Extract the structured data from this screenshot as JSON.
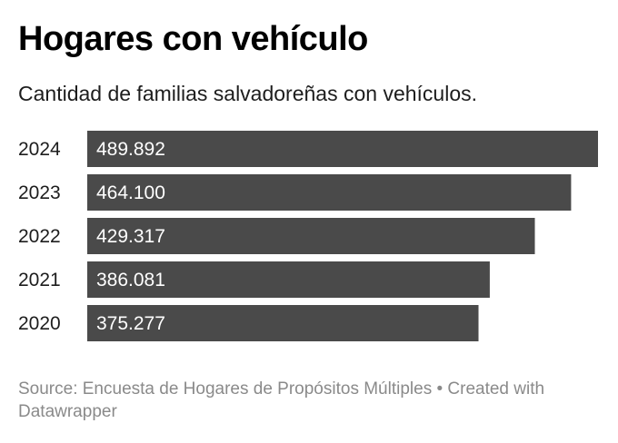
{
  "header": {
    "title": "Hogares con vehículo",
    "subtitle": "Cantidad de familias salvadoreñas con vehículos."
  },
  "footer": {
    "text": "Source: Encuesta de Hogares de Propósitos Múltiples • Created with Datawrapper"
  },
  "colors": {
    "bar": "#4a4a4a",
    "bar_label": "#ffffff",
    "category_label": "#1d1d1d",
    "footer": "#8a8a8a"
  },
  "chart_data": {
    "type": "bar",
    "orientation": "horizontal",
    "title": "Hogares con vehículo",
    "subtitle": "Cantidad de familias salvadoreñas con vehículos.",
    "xlabel": "",
    "ylabel": "",
    "categories": [
      "2024",
      "2023",
      "2022",
      "2021",
      "2020"
    ],
    "values": [
      489892,
      464100,
      429317,
      386081,
      375277
    ],
    "value_labels": [
      "489.892",
      "464.100",
      "429.317",
      "386.081",
      "375.277"
    ],
    "xlim": [
      0,
      489892
    ],
    "grid": false,
    "legend": "none",
    "source": "Encuesta de Hogares de Propósitos Múltiples"
  }
}
